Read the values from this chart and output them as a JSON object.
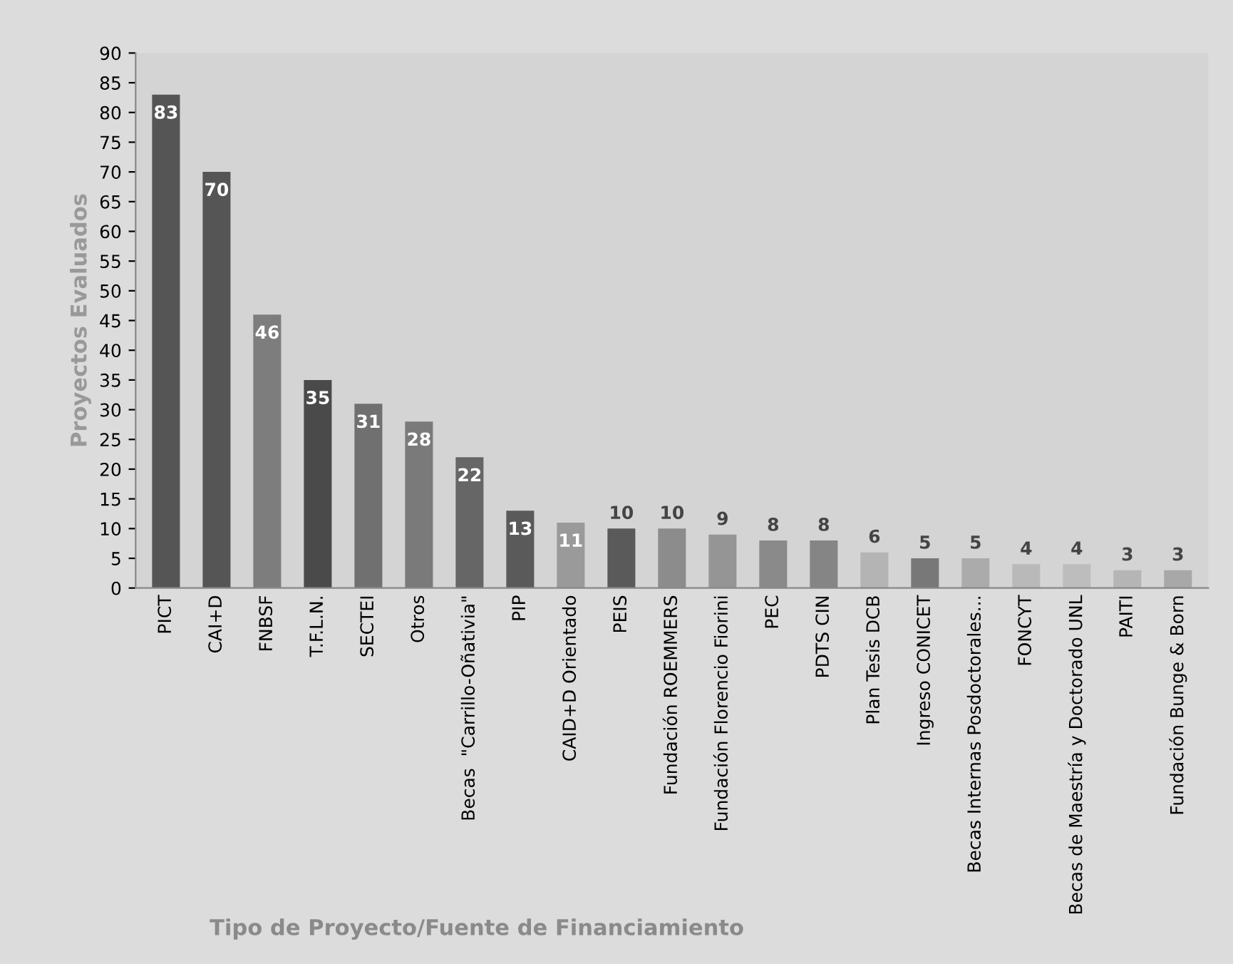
{
  "chart_data": {
    "type": "bar",
    "xlabel": "Tipo de Proyecto/Fuente de Financiamiento",
    "ylabel": "Proyectos Evaluados",
    "categories": [
      "PICT",
      "CAI+D",
      "FNBSF",
      "T.F.L.N.",
      "SECTEI",
      "Otros",
      "Becas  \"Carrillo-Oñativia\"",
      "PIP",
      "CAID+D Orientado",
      "PEIS",
      "Fundación ROEMMERS",
      "Fundación Florencio Fiorini",
      "PEC",
      "PDTS CIN",
      "Plan Tesis DCB",
      "Ingreso CONICET",
      "Becas Internas Posdoctorales...",
      "FONCYT",
      "Becas de Maestría y Doctorado UNL",
      "PAITI",
      "Fundación Bunge & Born"
    ],
    "values": [
      83,
      70,
      46,
      35,
      31,
      28,
      22,
      13,
      11,
      10,
      10,
      9,
      8,
      8,
      6,
      5,
      5,
      4,
      4,
      3,
      3
    ],
    "colors": [
      "#555555",
      "#555555",
      "#7d7d7d",
      "#4a4a4a",
      "#707070",
      "#7a7a7a",
      "#666666",
      "#5a5a5a",
      "#9a9a9a",
      "#5a5a5a",
      "#8c8c8c",
      "#959595",
      "#8a8a8a",
      "#858585",
      "#b4b4b4",
      "#787878",
      "#ababab",
      "#b9b9b9",
      "#bdbdbd",
      "#b5b5b5",
      "#a8a8a8"
    ],
    "ylim": [
      0,
      90
    ],
    "yticks": [
      0,
      5,
      10,
      15,
      20,
      25,
      30,
      35,
      40,
      45,
      50,
      55,
      60,
      65,
      70,
      75,
      80,
      85,
      90
    ],
    "grid": false,
    "data_labels": true
  }
}
